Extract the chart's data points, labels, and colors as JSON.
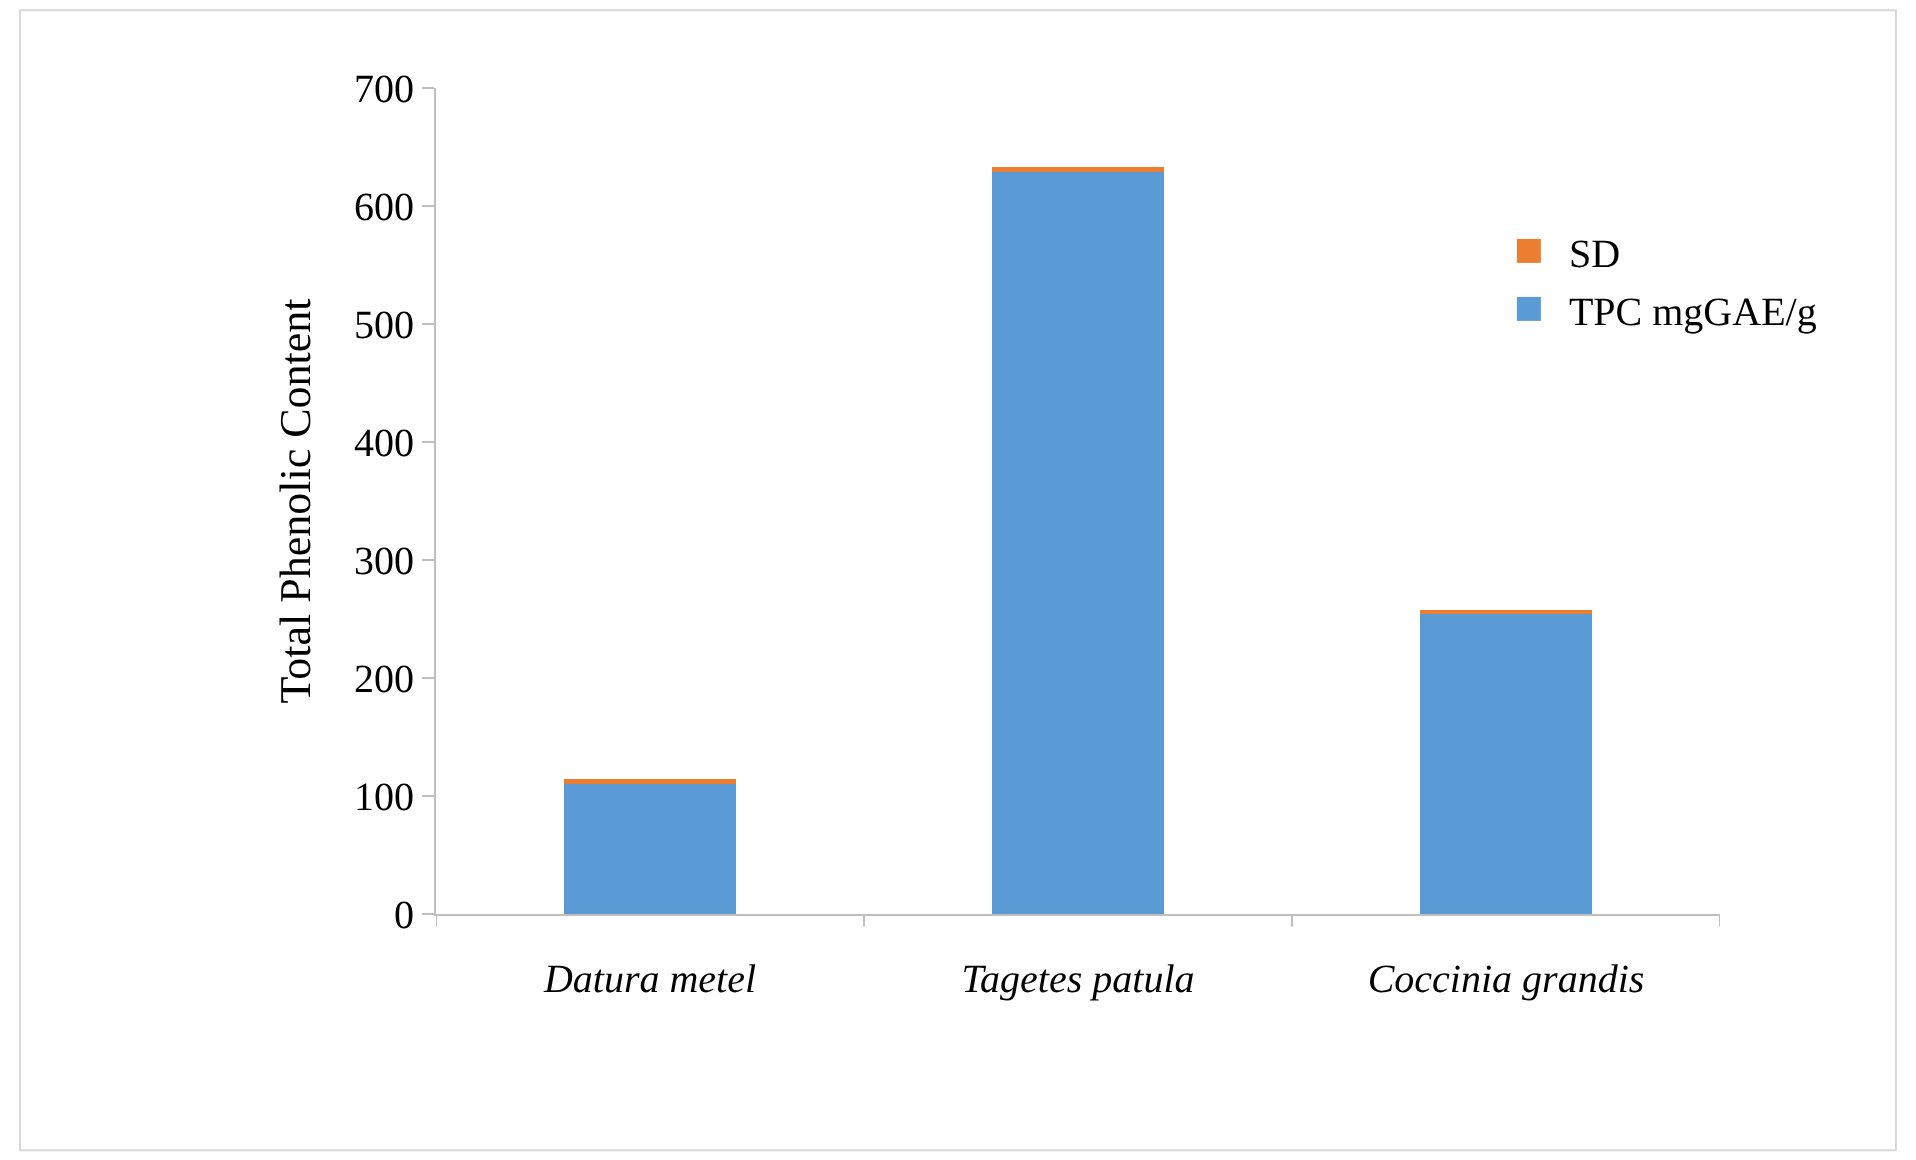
{
  "chart_data": {
    "type": "bar",
    "stacked": true,
    "ylabel": "Total Phenolic Content",
    "categories": [
      "Datura metel",
      "Tagetes patula",
      "Coccinia grandis"
    ],
    "series": [
      {
        "name": "TPC mgGAE/g",
        "color": "#5b9bd5",
        "values": [
          110,
          630,
          255
        ]
      },
      {
        "name": "SD",
        "color": "#ed7d31",
        "values": [
          4,
          3,
          3
        ]
      }
    ],
    "ylim": [
      0,
      700
    ],
    "yticks": [
      0,
      100,
      200,
      300,
      400,
      500,
      600,
      700
    ],
    "legend": "right"
  }
}
